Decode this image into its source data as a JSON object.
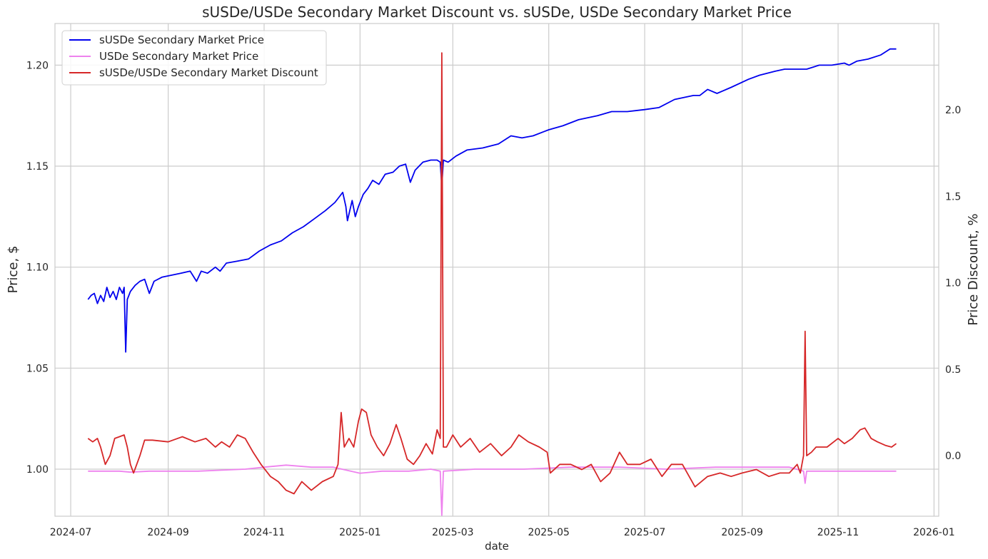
{
  "chart_data": {
    "type": "line",
    "title": "sUSDe/USDe Secondary Market Discount vs. sUSDe, USDe Secondary Market Price",
    "xlabel": "date",
    "ylabel_left": "Price, $",
    "ylabel_right": "Price Discount, %",
    "xlim": [
      "2024-06-21",
      "2026-01-04"
    ],
    "ylim_left": [
      0.9767,
      1.2206
    ],
    "ylim_right": [
      -0.35,
      2.5
    ],
    "x_ticks": [
      "2024-07",
      "2024-09",
      "2024-11",
      "2025-01",
      "2025-03",
      "2025-05",
      "2025-07",
      "2025-09",
      "2025-11",
      "2026-01"
    ],
    "y_ticks_left": [
      "1.00",
      "1.05",
      "1.10",
      "1.15",
      "1.20"
    ],
    "y_ticks_right": [
      "0.0",
      "0.5",
      "1.0",
      "1.5",
      "2.0"
    ],
    "legend_position": "top-left",
    "grid": true,
    "series": [
      {
        "name": "sUSDe Secondary Market Price",
        "axis": "left",
        "color": "#0000ee",
        "points": [
          [
            "2024-07-12",
            1.084
          ],
          [
            "2024-07-14",
            1.086
          ],
          [
            "2024-07-16",
            1.087
          ],
          [
            "2024-07-18",
            1.082
          ],
          [
            "2024-07-20",
            1.086
          ],
          [
            "2024-07-22",
            1.083
          ],
          [
            "2024-07-24",
            1.09
          ],
          [
            "2024-07-26",
            1.085
          ],
          [
            "2024-07-28",
            1.088
          ],
          [
            "2024-07-30",
            1.084
          ],
          [
            "2024-08-01",
            1.09
          ],
          [
            "2024-08-03",
            1.087
          ],
          [
            "2024-08-04",
            1.09
          ],
          [
            "2024-08-05",
            1.058
          ],
          [
            "2024-08-06",
            1.084
          ],
          [
            "2024-08-08",
            1.088
          ],
          [
            "2024-08-11",
            1.091
          ],
          [
            "2024-08-14",
            1.093
          ],
          [
            "2024-08-17",
            1.094
          ],
          [
            "2024-08-20",
            1.087
          ],
          [
            "2024-08-23",
            1.093
          ],
          [
            "2024-08-28",
            1.095
          ],
          [
            "2024-09-03",
            1.096
          ],
          [
            "2024-09-09",
            1.097
          ],
          [
            "2024-09-15",
            1.098
          ],
          [
            "2024-09-19",
            1.093
          ],
          [
            "2024-09-22",
            1.098
          ],
          [
            "2024-09-26",
            1.097
          ],
          [
            "2024-10-01",
            1.1
          ],
          [
            "2024-10-04",
            1.098
          ],
          [
            "2024-10-08",
            1.102
          ],
          [
            "2024-10-15",
            1.103
          ],
          [
            "2024-10-22",
            1.104
          ],
          [
            "2024-10-29",
            1.108
          ],
          [
            "2024-11-05",
            1.111
          ],
          [
            "2024-11-12",
            1.113
          ],
          [
            "2024-11-19",
            1.117
          ],
          [
            "2024-11-26",
            1.12
          ],
          [
            "2024-12-03",
            1.124
          ],
          [
            "2024-12-10",
            1.128
          ],
          [
            "2024-12-16",
            1.132
          ],
          [
            "2024-12-19",
            1.135
          ],
          [
            "2024-12-21",
            1.137
          ],
          [
            "2024-12-23",
            1.13
          ],
          [
            "2024-12-24",
            1.123
          ],
          [
            "2024-12-27",
            1.133
          ],
          [
            "2024-12-29",
            1.125
          ],
          [
            "2024-12-31",
            1.13
          ],
          [
            "2025-01-03",
            1.136
          ],
          [
            "2025-01-06",
            1.139
          ],
          [
            "2025-01-09",
            1.143
          ],
          [
            "2025-01-13",
            1.141
          ],
          [
            "2025-01-17",
            1.146
          ],
          [
            "2025-01-22",
            1.147
          ],
          [
            "2025-01-26",
            1.15
          ],
          [
            "2025-01-30",
            1.151
          ],
          [
            "2025-02-02",
            1.142
          ],
          [
            "2025-02-05",
            1.148
          ],
          [
            "2025-02-10",
            1.152
          ],
          [
            "2025-02-15",
            1.153
          ],
          [
            "2025-02-19",
            1.153
          ],
          [
            "2025-02-21",
            1.152
          ],
          [
            "2025-02-22",
            1.14
          ],
          [
            "2025-02-23",
            1.153
          ],
          [
            "2025-02-26",
            1.152
          ],
          [
            "2025-03-03",
            1.155
          ],
          [
            "2025-03-10",
            1.158
          ],
          [
            "2025-03-20",
            1.159
          ],
          [
            "2025-03-30",
            1.161
          ],
          [
            "2025-04-07",
            1.165
          ],
          [
            "2025-04-14",
            1.164
          ],
          [
            "2025-04-21",
            1.165
          ],
          [
            "2025-05-01",
            1.168
          ],
          [
            "2025-05-10",
            1.17
          ],
          [
            "2025-05-20",
            1.173
          ],
          [
            "2025-06-01",
            1.175
          ],
          [
            "2025-06-10",
            1.177
          ],
          [
            "2025-06-20",
            1.177
          ],
          [
            "2025-07-01",
            1.178
          ],
          [
            "2025-07-10",
            1.179
          ],
          [
            "2025-07-20",
            1.183
          ],
          [
            "2025-08-01",
            1.185
          ],
          [
            "2025-08-05",
            1.185
          ],
          [
            "2025-08-10",
            1.188
          ],
          [
            "2025-08-16",
            1.186
          ],
          [
            "2025-08-25",
            1.189
          ],
          [
            "2025-09-05",
            1.193
          ],
          [
            "2025-09-12",
            1.195
          ],
          [
            "2025-09-22",
            1.197
          ],
          [
            "2025-09-28",
            1.198
          ],
          [
            "2025-10-05",
            1.198
          ],
          [
            "2025-10-12",
            1.198
          ],
          [
            "2025-10-20",
            1.2
          ],
          [
            "2025-10-28",
            1.2
          ],
          [
            "2025-11-05",
            1.201
          ],
          [
            "2025-11-08",
            1.2
          ],
          [
            "2025-11-13",
            1.202
          ],
          [
            "2025-11-20",
            1.203
          ],
          [
            "2025-11-28",
            1.205
          ],
          [
            "2025-12-04",
            1.208
          ],
          [
            "2025-12-08",
            1.208
          ]
        ]
      },
      {
        "name": "USDe Secondary Market Price",
        "axis": "left",
        "color": "#ee82ee",
        "points": [
          [
            "2024-07-12",
            0.999
          ],
          [
            "2024-07-20",
            0.999
          ],
          [
            "2024-08-01",
            0.999
          ],
          [
            "2024-08-08",
            0.9985
          ],
          [
            "2024-08-20",
            0.999
          ],
          [
            "2024-09-01",
            0.999
          ],
          [
            "2024-09-20",
            0.999
          ],
          [
            "2024-10-05",
            0.9995
          ],
          [
            "2024-10-20",
            1.0
          ],
          [
            "2024-11-01",
            1.001
          ],
          [
            "2024-11-15",
            1.002
          ],
          [
            "2024-12-01",
            1.001
          ],
          [
            "2024-12-15",
            1.001
          ],
          [
            "2025-01-01",
            0.998
          ],
          [
            "2025-01-15",
            0.999
          ],
          [
            "2025-02-01",
            0.999
          ],
          [
            "2025-02-15",
            1.0
          ],
          [
            "2025-02-21",
            0.999
          ],
          [
            "2025-02-22",
            0.977
          ],
          [
            "2025-02-23",
            0.999
          ],
          [
            "2025-03-15",
            1.0
          ],
          [
            "2025-04-15",
            1.0
          ],
          [
            "2025-05-15",
            1.001
          ],
          [
            "2025-06-15",
            1.001
          ],
          [
            "2025-07-15",
            1.0
          ],
          [
            "2025-08-15",
            1.001
          ],
          [
            "2025-09-15",
            1.001
          ],
          [
            "2025-10-01",
            1.001
          ],
          [
            "2025-10-10",
            0.999
          ],
          [
            "2025-10-11",
            0.993
          ],
          [
            "2025-10-12",
            0.999
          ],
          [
            "2025-11-01",
            0.999
          ],
          [
            "2025-11-20",
            0.999
          ],
          [
            "2025-12-08",
            0.999
          ]
        ]
      },
      {
        "name": "sUSDe/USDe Secondary Market Discount",
        "axis": "right",
        "color": "#d62728",
        "points": [
          [
            "2024-07-12",
            0.1
          ],
          [
            "2024-07-15",
            0.08
          ],
          [
            "2024-07-18",
            0.1
          ],
          [
            "2024-07-20",
            0.05
          ],
          [
            "2024-07-23",
            -0.05
          ],
          [
            "2024-07-26",
            0.0
          ],
          [
            "2024-07-29",
            0.1
          ],
          [
            "2024-08-01",
            0.11
          ],
          [
            "2024-08-04",
            0.12
          ],
          [
            "2024-08-06",
            0.05
          ],
          [
            "2024-08-08",
            -0.05
          ],
          [
            "2024-08-10",
            -0.1
          ],
          [
            "2024-08-14",
            0.0
          ],
          [
            "2024-08-17",
            0.09
          ],
          [
            "2024-08-22",
            0.09
          ],
          [
            "2024-09-01",
            0.08
          ],
          [
            "2024-09-10",
            0.11
          ],
          [
            "2024-09-18",
            0.08
          ],
          [
            "2024-09-25",
            0.1
          ],
          [
            "2024-10-01",
            0.05
          ],
          [
            "2024-10-05",
            0.08
          ],
          [
            "2024-10-10",
            0.05
          ],
          [
            "2024-10-15",
            0.12
          ],
          [
            "2024-10-20",
            0.1
          ],
          [
            "2024-10-25",
            0.02
          ],
          [
            "2024-10-30",
            -0.05
          ],
          [
            "2024-11-05",
            -0.12
          ],
          [
            "2024-11-10",
            -0.15
          ],
          [
            "2024-11-15",
            -0.2
          ],
          [
            "2024-11-20",
            -0.22
          ],
          [
            "2024-11-25",
            -0.15
          ],
          [
            "2024-12-01",
            -0.2
          ],
          [
            "2024-12-08",
            -0.15
          ],
          [
            "2024-12-15",
            -0.12
          ],
          [
            "2024-12-18",
            -0.05
          ],
          [
            "2024-12-20",
            0.25
          ],
          [
            "2024-12-22",
            0.05
          ],
          [
            "2024-12-25",
            0.1
          ],
          [
            "2024-12-28",
            0.05
          ],
          [
            "2024-12-31",
            0.2
          ],
          [
            "2025-01-02",
            0.27
          ],
          [
            "2025-01-05",
            0.25
          ],
          [
            "2025-01-08",
            0.12
          ],
          [
            "2025-01-12",
            0.05
          ],
          [
            "2025-01-16",
            0.0
          ],
          [
            "2025-01-20",
            0.07
          ],
          [
            "2025-01-24",
            0.18
          ],
          [
            "2025-01-27",
            0.1
          ],
          [
            "2025-01-31",
            -0.02
          ],
          [
            "2025-02-04",
            -0.05
          ],
          [
            "2025-02-08",
            0.0
          ],
          [
            "2025-02-12",
            0.07
          ],
          [
            "2025-02-16",
            0.01
          ],
          [
            "2025-02-19",
            0.15
          ],
          [
            "2025-02-21",
            0.1
          ],
          [
            "2025-02-22",
            2.33
          ],
          [
            "2025-02-23",
            0.05
          ],
          [
            "2025-02-25",
            0.05
          ],
          [
            "2025-03-01",
            0.12
          ],
          [
            "2025-03-06",
            0.05
          ],
          [
            "2025-03-12",
            0.1
          ],
          [
            "2025-03-18",
            0.02
          ],
          [
            "2025-03-25",
            0.07
          ],
          [
            "2025-04-01",
            0.0
          ],
          [
            "2025-04-07",
            0.05
          ],
          [
            "2025-04-12",
            0.12
          ],
          [
            "2025-04-18",
            0.08
          ],
          [
            "2025-04-25",
            0.05
          ],
          [
            "2025-04-30",
            0.02
          ],
          [
            "2025-05-02",
            -0.1
          ],
          [
            "2025-05-08",
            -0.05
          ],
          [
            "2025-05-15",
            -0.05
          ],
          [
            "2025-05-22",
            -0.08
          ],
          [
            "2025-05-28",
            -0.05
          ],
          [
            "2025-06-03",
            -0.15
          ],
          [
            "2025-06-09",
            -0.1
          ],
          [
            "2025-06-15",
            0.02
          ],
          [
            "2025-06-20",
            -0.05
          ],
          [
            "2025-06-28",
            -0.05
          ],
          [
            "2025-07-05",
            -0.02
          ],
          [
            "2025-07-12",
            -0.12
          ],
          [
            "2025-07-18",
            -0.05
          ],
          [
            "2025-07-25",
            -0.05
          ],
          [
            "2025-08-02",
            -0.18
          ],
          [
            "2025-08-10",
            -0.12
          ],
          [
            "2025-08-18",
            -0.1
          ],
          [
            "2025-08-25",
            -0.12
          ],
          [
            "2025-09-01",
            -0.1
          ],
          [
            "2025-09-10",
            -0.08
          ],
          [
            "2025-09-18",
            -0.12
          ],
          [
            "2025-09-25",
            -0.1
          ],
          [
            "2025-10-01",
            -0.1
          ],
          [
            "2025-10-06",
            -0.05
          ],
          [
            "2025-10-08",
            -0.1
          ],
          [
            "2025-10-10",
            0.0
          ],
          [
            "2025-10-11",
            0.72
          ],
          [
            "2025-10-12",
            0.0
          ],
          [
            "2025-10-15",
            0.02
          ],
          [
            "2025-10-18",
            0.05
          ],
          [
            "2025-10-25",
            0.05
          ],
          [
            "2025-11-01",
            0.1
          ],
          [
            "2025-11-05",
            0.07
          ],
          [
            "2025-11-10",
            0.1
          ],
          [
            "2025-11-15",
            0.15
          ],
          [
            "2025-11-18",
            0.16
          ],
          [
            "2025-11-22",
            0.1
          ],
          [
            "2025-11-26",
            0.08
          ],
          [
            "2025-12-01",
            0.06
          ],
          [
            "2025-12-05",
            0.05
          ],
          [
            "2025-12-08",
            0.07
          ]
        ]
      }
    ]
  }
}
